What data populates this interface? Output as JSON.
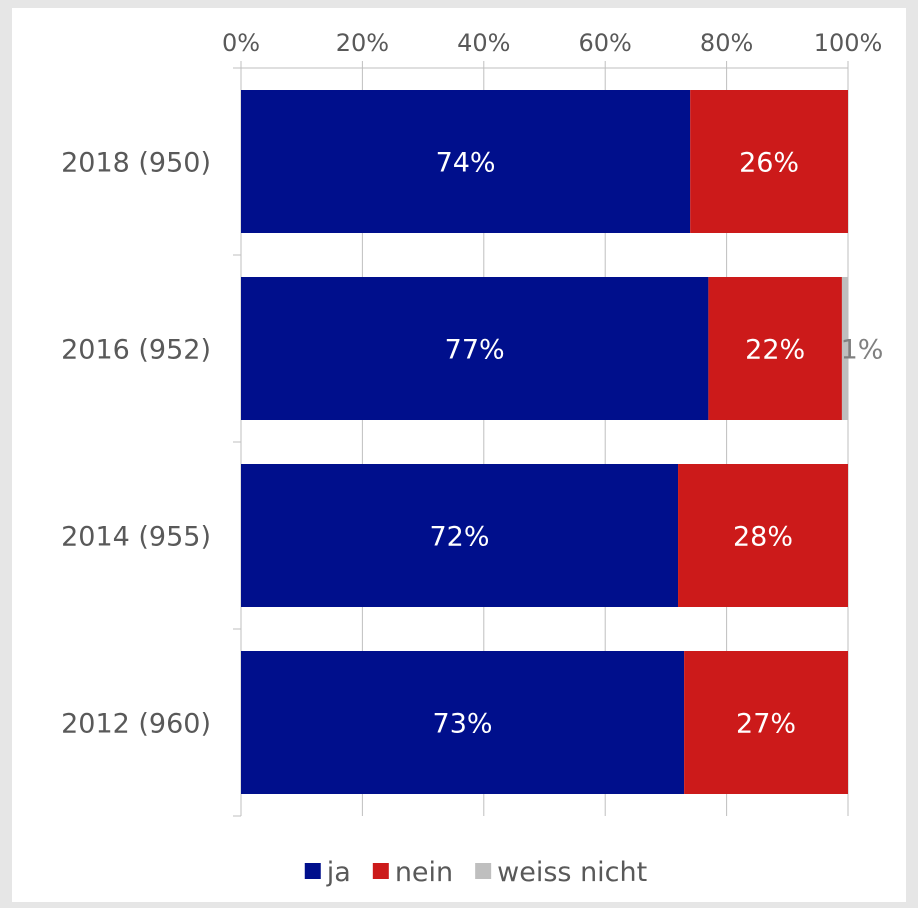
{
  "chart_data": {
    "type": "bar",
    "orientation": "horizontal",
    "stacking": "percent",
    "categories": [
      "2018 (950)",
      "2016 (952)",
      "2014 (955)",
      "2012 (960)"
    ],
    "series": [
      {
        "name": "ja",
        "values": [
          74,
          77,
          72,
          73
        ],
        "labels": [
          "74%",
          "77%",
          "72%",
          "73%"
        ],
        "color": "#000f8c"
      },
      {
        "name": "nein",
        "values": [
          26,
          22,
          28,
          27
        ],
        "labels": [
          "26%",
          "22%",
          "28%",
          "27%"
        ],
        "color": "#cc1a1a"
      },
      {
        "name": "weiss nicht",
        "values": [
          0,
          1,
          0,
          0
        ],
        "labels": [
          "",
          "1%",
          "",
          ""
        ],
        "color": "#bfbfbf"
      }
    ],
    "x_axis": {
      "position": "top",
      "range": [
        0,
        100
      ],
      "ticks": [
        0,
        20,
        40,
        60,
        80,
        100
      ],
      "tick_labels": [
        "0%",
        "20%",
        "40%",
        "60%",
        "80%",
        "100%"
      ],
      "grid": true
    },
    "legend": {
      "placement": "bottom-center"
    },
    "colors": {
      "grid": "#bfbfbf",
      "text": "#595959",
      "background": "#ffffff"
    }
  }
}
